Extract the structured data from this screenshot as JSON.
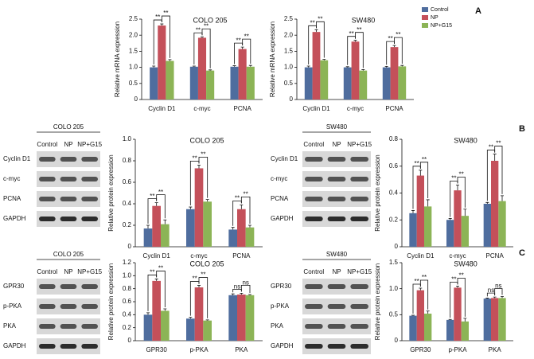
{
  "panel_labels": [
    "A",
    "B",
    "C"
  ],
  "blots": [
    {
      "title": "COLO 205",
      "columns": [
        "Control",
        "NP",
        "NP+G15"
      ],
      "rows": [
        "Cyclin D1",
        "c-myc",
        "PCNA",
        "GAPDH"
      ]
    },
    {
      "title": "SW480",
      "columns": [
        "Control",
        "NP",
        "NP+G15"
      ],
      "rows": [
        "Cyclin D1",
        "c-myc",
        "PCNA",
        "GAPDH"
      ]
    },
    {
      "title": "COLO 205",
      "columns": [
        "Control",
        "NP",
        "NP+G15"
      ],
      "rows": [
        "GPR30",
        "p-PKA",
        "PKA",
        "GAPDH"
      ]
    },
    {
      "title": "SW480",
      "columns": [
        "Control",
        "NP",
        "NP+G15"
      ],
      "rows": [
        "GPR30",
        "p-PKA",
        "PKA",
        "GAPDH"
      ]
    }
  ],
  "chart_data": [
    {
      "type": "bar",
      "title": "COLO 205",
      "ylabel": "Relative mRNA expression",
      "categories": [
        "Cyclin D1",
        "c-myc",
        "PCNA"
      ],
      "series": [
        {
          "color": "#4f6d9e",
          "values": [
            1.0,
            1.02,
            1.02
          ],
          "errors": [
            0.04,
            0.02,
            0.03
          ]
        },
        {
          "color": "#c4505a",
          "values": [
            2.3,
            1.92,
            1.57
          ],
          "errors": [
            0.05,
            0.03,
            0.06
          ]
        },
        {
          "color": "#8cb456",
          "values": [
            1.2,
            0.9,
            1.02
          ],
          "errors": [
            0.04,
            0.02,
            0.04
          ]
        }
      ],
      "ylim": [
        0,
        2.5
      ],
      "yticks": [
        0,
        0.5,
        {
          "value": 1,
          "label": "1.0"
        },
        1.5,
        {
          "value": 2,
          "label": "2.0"
        },
        2.5
      ],
      "significance": [
        [
          "**",
          "**"
        ],
        [
          "**",
          "**"
        ],
        [
          "**",
          "**"
        ]
      ]
    },
    {
      "type": "bar",
      "title": "SW480",
      "ylabel": "Relative mRNA expression",
      "categories": [
        "Cyclin D1",
        "c-myc",
        "PCNA"
      ],
      "series": [
        {
          "name": "Control",
          "color": "#4f6d9e",
          "values": [
            1.0,
            1.0,
            1.0
          ],
          "errors": [
            0.04,
            0.02,
            0.03
          ]
        },
        {
          "name": "NP",
          "color": "#c4505a",
          "values": [
            2.1,
            1.8,
            1.63
          ],
          "errors": [
            0.07,
            0.04,
            0.05
          ]
        },
        {
          "name": "NP+G15",
          "color": "#8cb456",
          "values": [
            1.22,
            0.9,
            1.03
          ],
          "errors": [
            0.03,
            0.03,
            0.03
          ]
        }
      ],
      "ylim": [
        0,
        2.5
      ],
      "yticks": [
        0,
        0.5,
        {
          "value": 1,
          "label": "1.0"
        },
        1.5,
        {
          "value": 2,
          "label": "2.0"
        },
        2.5
      ],
      "legend": "top-right",
      "significance": [
        [
          "**",
          "**"
        ],
        [
          "**",
          "**"
        ],
        [
          "**",
          "**"
        ]
      ]
    },
    {
      "type": "bar",
      "title": "COLO 205",
      "ylabel": "Relative protein expression",
      "categories": [
        "Cyclin D1",
        "c-myc",
        "PCNA"
      ],
      "series": [
        {
          "color": "#4f6d9e",
          "values": [
            0.17,
            0.35,
            0.16
          ],
          "errors": [
            0.03,
            0.02,
            0.02
          ]
        },
        {
          "color": "#c4505a",
          "values": [
            0.38,
            0.73,
            0.35
          ],
          "errors": [
            0.03,
            0.03,
            0.04
          ]
        },
        {
          "color": "#8cb456",
          "values": [
            0.21,
            0.42,
            0.18
          ],
          "errors": [
            0.04,
            0.02,
            0.02
          ]
        }
      ],
      "ylim": [
        0,
        1
      ],
      "yticks": [
        0,
        0.2,
        0.4,
        0.6,
        0.8,
        {
          "value": 1,
          "label": "1.0"
        }
      ],
      "significance": [
        [
          "**",
          "**"
        ],
        [
          "**",
          "**"
        ],
        [
          "**",
          "**"
        ]
      ]
    },
    {
      "type": "bar",
      "title": "SW480",
      "ylabel": "Relative protein expression",
      "categories": [
        "Cyclin D1",
        "c-myc",
        "PCNA"
      ],
      "series": [
        {
          "color": "#4f6d9e",
          "values": [
            0.25,
            0.2,
            0.32
          ],
          "errors": [
            0.02,
            0.01,
            0.01
          ]
        },
        {
          "color": "#c4505a",
          "values": [
            0.53,
            0.42,
            0.64
          ],
          "errors": [
            0.04,
            0.04,
            0.05
          ]
        },
        {
          "color": "#8cb456",
          "values": [
            0.3,
            0.23,
            0.34
          ],
          "errors": [
            0.05,
            0.05,
            0.04
          ]
        }
      ],
      "ylim": [
        0,
        0.8
      ],
      "yticks": [
        0,
        0.2,
        0.4,
        0.6,
        0.8
      ],
      "significance": [
        [
          "**",
          "**"
        ],
        [
          "**",
          "**"
        ],
        [
          "**",
          "**"
        ]
      ]
    },
    {
      "type": "bar",
      "title": "COLO 205",
      "ylabel": "Relative protein expression",
      "categories": [
        "GPR30",
        "p-PKA",
        "PKA"
      ],
      "series": [
        {
          "color": "#4f6d9e",
          "values": [
            0.4,
            0.34,
            0.7
          ],
          "errors": [
            0.03,
            0.02,
            0.02
          ]
        },
        {
          "color": "#c4505a",
          "values": [
            0.92,
            0.82,
            0.71
          ],
          "errors": [
            0.03,
            0.03,
            0.02
          ]
        },
        {
          "color": "#8cb456",
          "values": [
            0.46,
            0.31,
            0.7
          ],
          "errors": [
            0.03,
            0.01,
            0.01
          ]
        }
      ],
      "ylim": [
        0,
        1.2
      ],
      "yticks": [
        0,
        0.2,
        0.4,
        0.6,
        0.8,
        {
          "value": 1,
          "label": "1.0"
        },
        1.2
      ],
      "significance": [
        [
          "**",
          "**"
        ],
        [
          "**",
          "**"
        ],
        [
          "ns",
          "ns"
        ]
      ]
    },
    {
      "type": "bar",
      "title": "SW480",
      "ylabel": "Relative protein expression",
      "categories": [
        "GPR30",
        "p-PKA",
        "PKA"
      ],
      "series": [
        {
          "color": "#4f6d9e",
          "values": [
            0.48,
            0.4,
            0.81
          ],
          "errors": [
            0.01,
            0.01,
            0.01
          ]
        },
        {
          "color": "#c4505a",
          "values": [
            0.97,
            1.02,
            0.82
          ],
          "errors": [
            0.04,
            0.03,
            0.02
          ]
        },
        {
          "color": "#8cb456",
          "values": [
            0.52,
            0.37,
            0.82
          ],
          "errors": [
            0.05,
            0.06,
            0.03
          ]
        }
      ],
      "ylim": [
        0,
        1.5
      ],
      "yticks": [
        0,
        0.5,
        {
          "value": 1,
          "label": "1.0"
        },
        1.5
      ],
      "significance": [
        [
          "**",
          "**"
        ],
        [
          "**",
          "**"
        ],
        [
          "ns",
          "ns"
        ]
      ]
    }
  ]
}
